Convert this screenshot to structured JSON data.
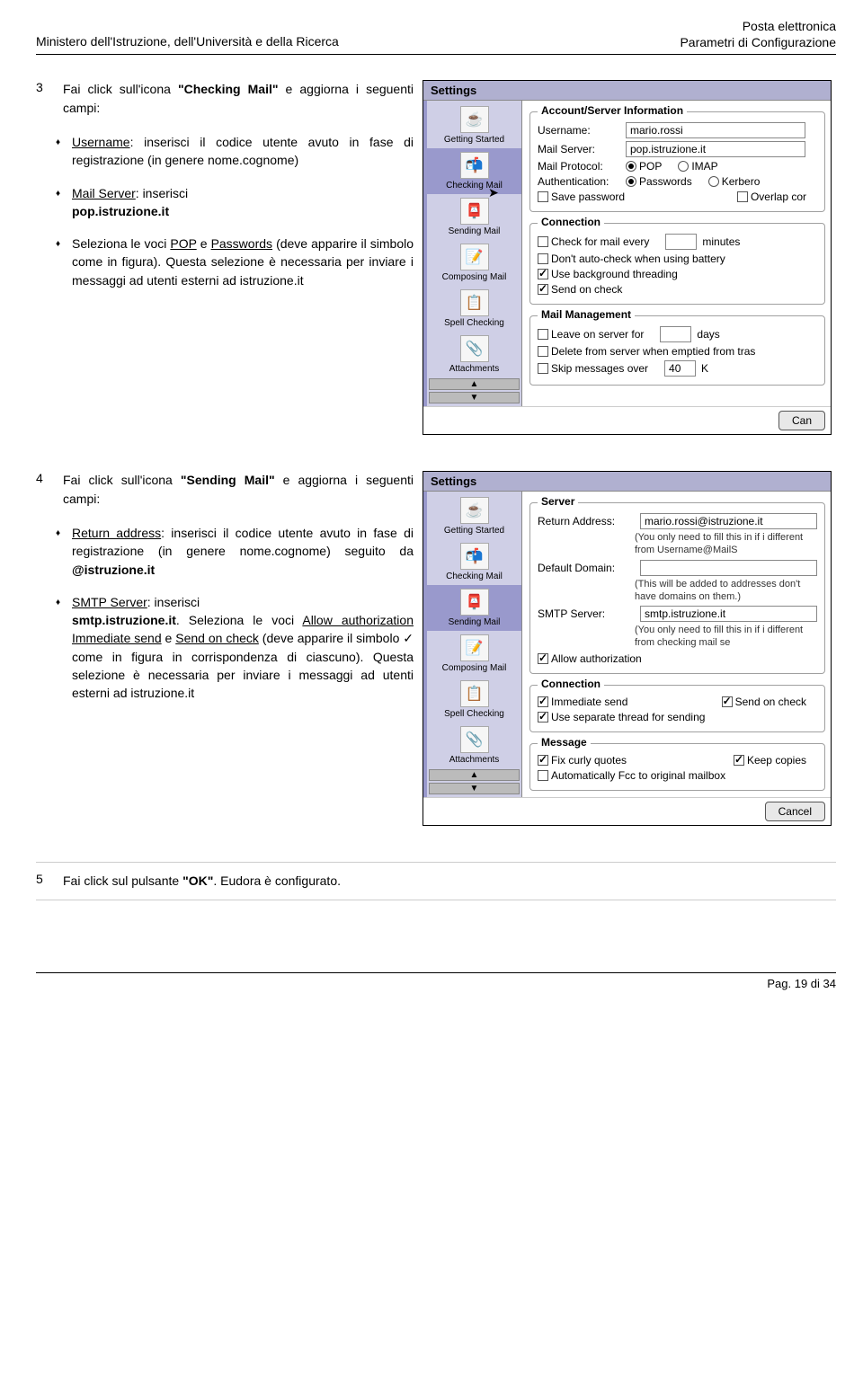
{
  "header": {
    "left": "Ministero dell'Istruzione, dell'Università e della Ricerca",
    "right_line1": "Posta elettronica",
    "right_line2": "Parametri di Configurazione"
  },
  "step3": {
    "num": "3",
    "intro_prefix": "Fai click sull'icona ",
    "intro_bold": "\"Checking Mail\"",
    "intro_suffix": " e aggiorna i seguenti campi:",
    "b1_label": "Username",
    "b1_text": ": inserisci il codice utente avuto in fase di registrazione (in genere nome.cognome)",
    "b2_label": "Mail Server",
    "b2_text": ": inserisci",
    "b2_bold": "pop.istruzione.it",
    "b3_part1": "Seleziona le voci ",
    "b3_u1": "POP",
    "b3_mid": " e ",
    "b3_u2": "Passwords",
    "b3_part2": " (deve apparire il simbolo come in figura). Questa selezione è necessaria per inviare i messaggi ad utenti esterni ad istruzione.it"
  },
  "shot1": {
    "title": "Settings",
    "sidebar": [
      {
        "label": "Getting Started",
        "icon": "☕",
        "sel": false
      },
      {
        "label": "Checking Mail",
        "icon": "📬",
        "sel": true
      },
      {
        "label": "Sending Mail",
        "icon": "📮",
        "sel": false
      },
      {
        "label": "Composing Mail",
        "icon": "📝",
        "sel": false
      },
      {
        "label": "Spell Checking",
        "icon": "📋",
        "sel": false
      },
      {
        "label": "Attachments",
        "icon": "📎",
        "sel": false
      }
    ],
    "group1": {
      "title": "Account/Server Information",
      "username_label": "Username:",
      "username_value": "mario.rossi",
      "mailserver_label": "Mail Server:",
      "mailserver_value": "pop.istruzione.it",
      "mailprotocol_label": "Mail Protocol:",
      "pop": "POP",
      "imap": "IMAP",
      "auth_label": "Authentication:",
      "passwords": "Passwords",
      "kerberos": "Kerbero",
      "save_pw": "Save password",
      "overlap": "Overlap cor"
    },
    "group2": {
      "title": "Connection",
      "check_every_pre": "Check for mail every",
      "check_every_post": "minutes",
      "dont_auto": "Don't auto-check when using battery",
      "bg_thread": "Use background threading",
      "send_check": "Send on check"
    },
    "group3": {
      "title": "Mail Management",
      "leave_pre": "Leave on server for",
      "leave_post": "days",
      "delete": "Delete from server when emptied from tras",
      "skip_pre": "Skip messages over",
      "skip_val": "40",
      "skip_post": "K"
    },
    "button": "Can"
  },
  "step4": {
    "num": "4",
    "intro_prefix": "Fai click sull'icona ",
    "intro_bold": "\"Sending Mail\"",
    "intro_suffix": " e aggiorna i seguenti campi:",
    "b1_label": "Return address",
    "b1_text": ": inserisci il codice utente avuto in fase di registrazione (in genere nome.cognome) seguito da ",
    "b1_bold": "@istruzione.it",
    "b2_label": "SMTP Server",
    "b2_text": ": inserisci",
    "b2_bold": "smtp.istruzione.it",
    "b3_part1": ". Seleziona le voci ",
    "b3_u1": "Allow authorization",
    "b3_u2": "Immediate send",
    "b3_mid": " e ",
    "b3_u3": "Send on check",
    "b3_part2": " (deve apparire il simbolo ✓ come in figura in corrispondenza di ciascuno). Questa selezione è necessaria per inviare i messaggi ad utenti esterni ad istruzione.it"
  },
  "shot2": {
    "title": "Settings",
    "sidebar": [
      {
        "label": "Getting Started",
        "icon": "☕",
        "sel": false
      },
      {
        "label": "Checking Mail",
        "icon": "📬",
        "sel": false
      },
      {
        "label": "Sending Mail",
        "icon": "📮",
        "sel": true
      },
      {
        "label": "Composing Mail",
        "icon": "📝",
        "sel": false
      },
      {
        "label": "Spell Checking",
        "icon": "📋",
        "sel": false
      },
      {
        "label": "Attachments",
        "icon": "📎",
        "sel": false
      }
    ],
    "group1": {
      "title": "Server",
      "return_label": "Return Address:",
      "return_value": "mario.rossi@istruzione.it",
      "return_hint": "(You only need to fill this in if i different from Username@MailS",
      "domain_label": "Default Domain:",
      "domain_hint": "(This will be added to addresses don't have domains on them.)",
      "smtp_label": "SMTP Server:",
      "smtp_value": "smtp.istruzione.it",
      "smtp_hint": "(You only need to fill this in if i different from checking mail se",
      "allow_auth": "Allow authorization"
    },
    "group2": {
      "title": "Connection",
      "immediate": "Immediate send",
      "send_check": "Send on check",
      "sep_thread": "Use separate thread for sending"
    },
    "group3": {
      "title": "Message",
      "fix_curly": "Fix curly quotes",
      "keep_copies": "Keep copies",
      "auto_fcc": "Automatically Fcc to original mailbox"
    },
    "button": "Cancel"
  },
  "step5": {
    "num": "5",
    "text_prefix": "Fai click sul pulsante ",
    "text_bold": "\"OK\"",
    "text_suffix": ". Eudora è configurato."
  },
  "footer": "Pag. 19 di 34"
}
